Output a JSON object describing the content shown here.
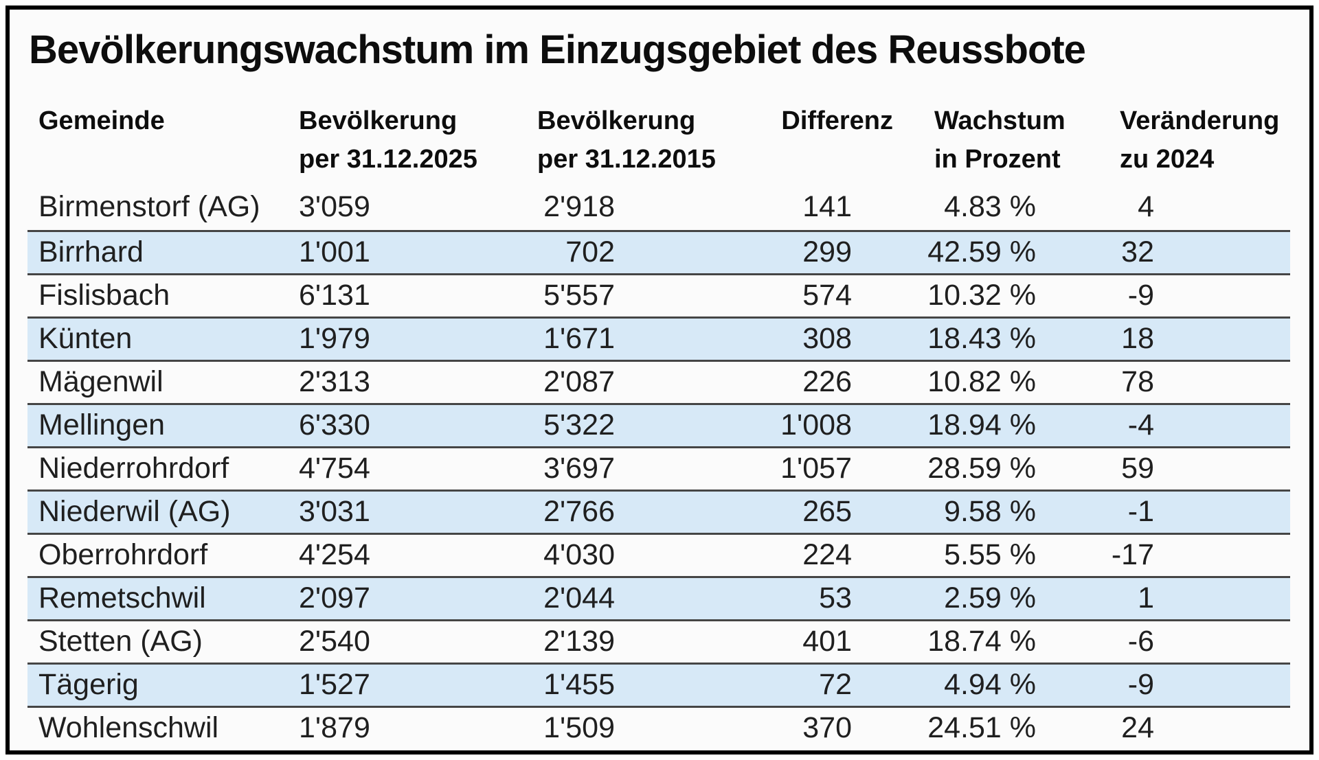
{
  "title": "Bevölkerungswachstum im Einzugsgebiet des Reussbote",
  "chart_data": {
    "type": "table",
    "columns": [
      {
        "line1": "Gemeinde",
        "line2": ""
      },
      {
        "line1": "Bevölkerung",
        "line2": "per 31.12.2025"
      },
      {
        "line1": "Bevölkerung",
        "line2": "per 31.12.2015"
      },
      {
        "line1": "Differenz",
        "line2": ""
      },
      {
        "line1": "Wachstum",
        "line2": "in Prozent"
      },
      {
        "line1": "Veränderung",
        "line2": "zu 2024"
      }
    ],
    "rows": [
      [
        "Birmenstorf (AG)",
        "3'059",
        "2'918",
        "141",
        "4.83 %",
        "4"
      ],
      [
        "Birrhard",
        "1'001",
        "702",
        "299",
        "42.59 %",
        "32"
      ],
      [
        "Fislisbach",
        "6'131",
        "5'557",
        "574",
        "10.32 %",
        "-9"
      ],
      [
        "Künten",
        "1'979",
        "1'671",
        "308",
        "18.43 %",
        "18"
      ],
      [
        "Mägenwil",
        "2'313",
        "2'087",
        "226",
        "10.82 %",
        "78"
      ],
      [
        "Mellingen",
        "6'330",
        "5'322",
        "1'008",
        "18.94 %",
        "-4"
      ],
      [
        "Niederrohrdorf",
        "4'754",
        "3'697",
        "1'057",
        "28.59 %",
        "59"
      ],
      [
        "Niederwil (AG)",
        "3'031",
        "2'766",
        "265",
        "9.58 %",
        "-1"
      ],
      [
        "Oberrohrdorf",
        "4'254",
        "4'030",
        "224",
        "5.55 %",
        "-17"
      ],
      [
        "Remetschwil",
        "2'097",
        "2'044",
        "53",
        "2.59 %",
        "1"
      ],
      [
        "Stetten (AG)",
        "2'540",
        "2'139",
        "401",
        "18.74 %",
        "-6"
      ],
      [
        "Tägerig",
        "1'527",
        "1'455",
        "72",
        "4.94 %",
        "-9"
      ],
      [
        "Wohlenschwil",
        "1'879",
        "1'509",
        "370",
        "24.51 %",
        "24"
      ]
    ],
    "striped_row_indexes": [
      1,
      3,
      5,
      7,
      9,
      11
    ],
    "legend_position": "none",
    "grid": "horizontal-row-separators"
  },
  "colors": {
    "stripe": "#d7e9f7",
    "row_line": "#454545",
    "frame_border": "#000000",
    "text": "#1a1a1a",
    "background": "#fbfbfb"
  }
}
